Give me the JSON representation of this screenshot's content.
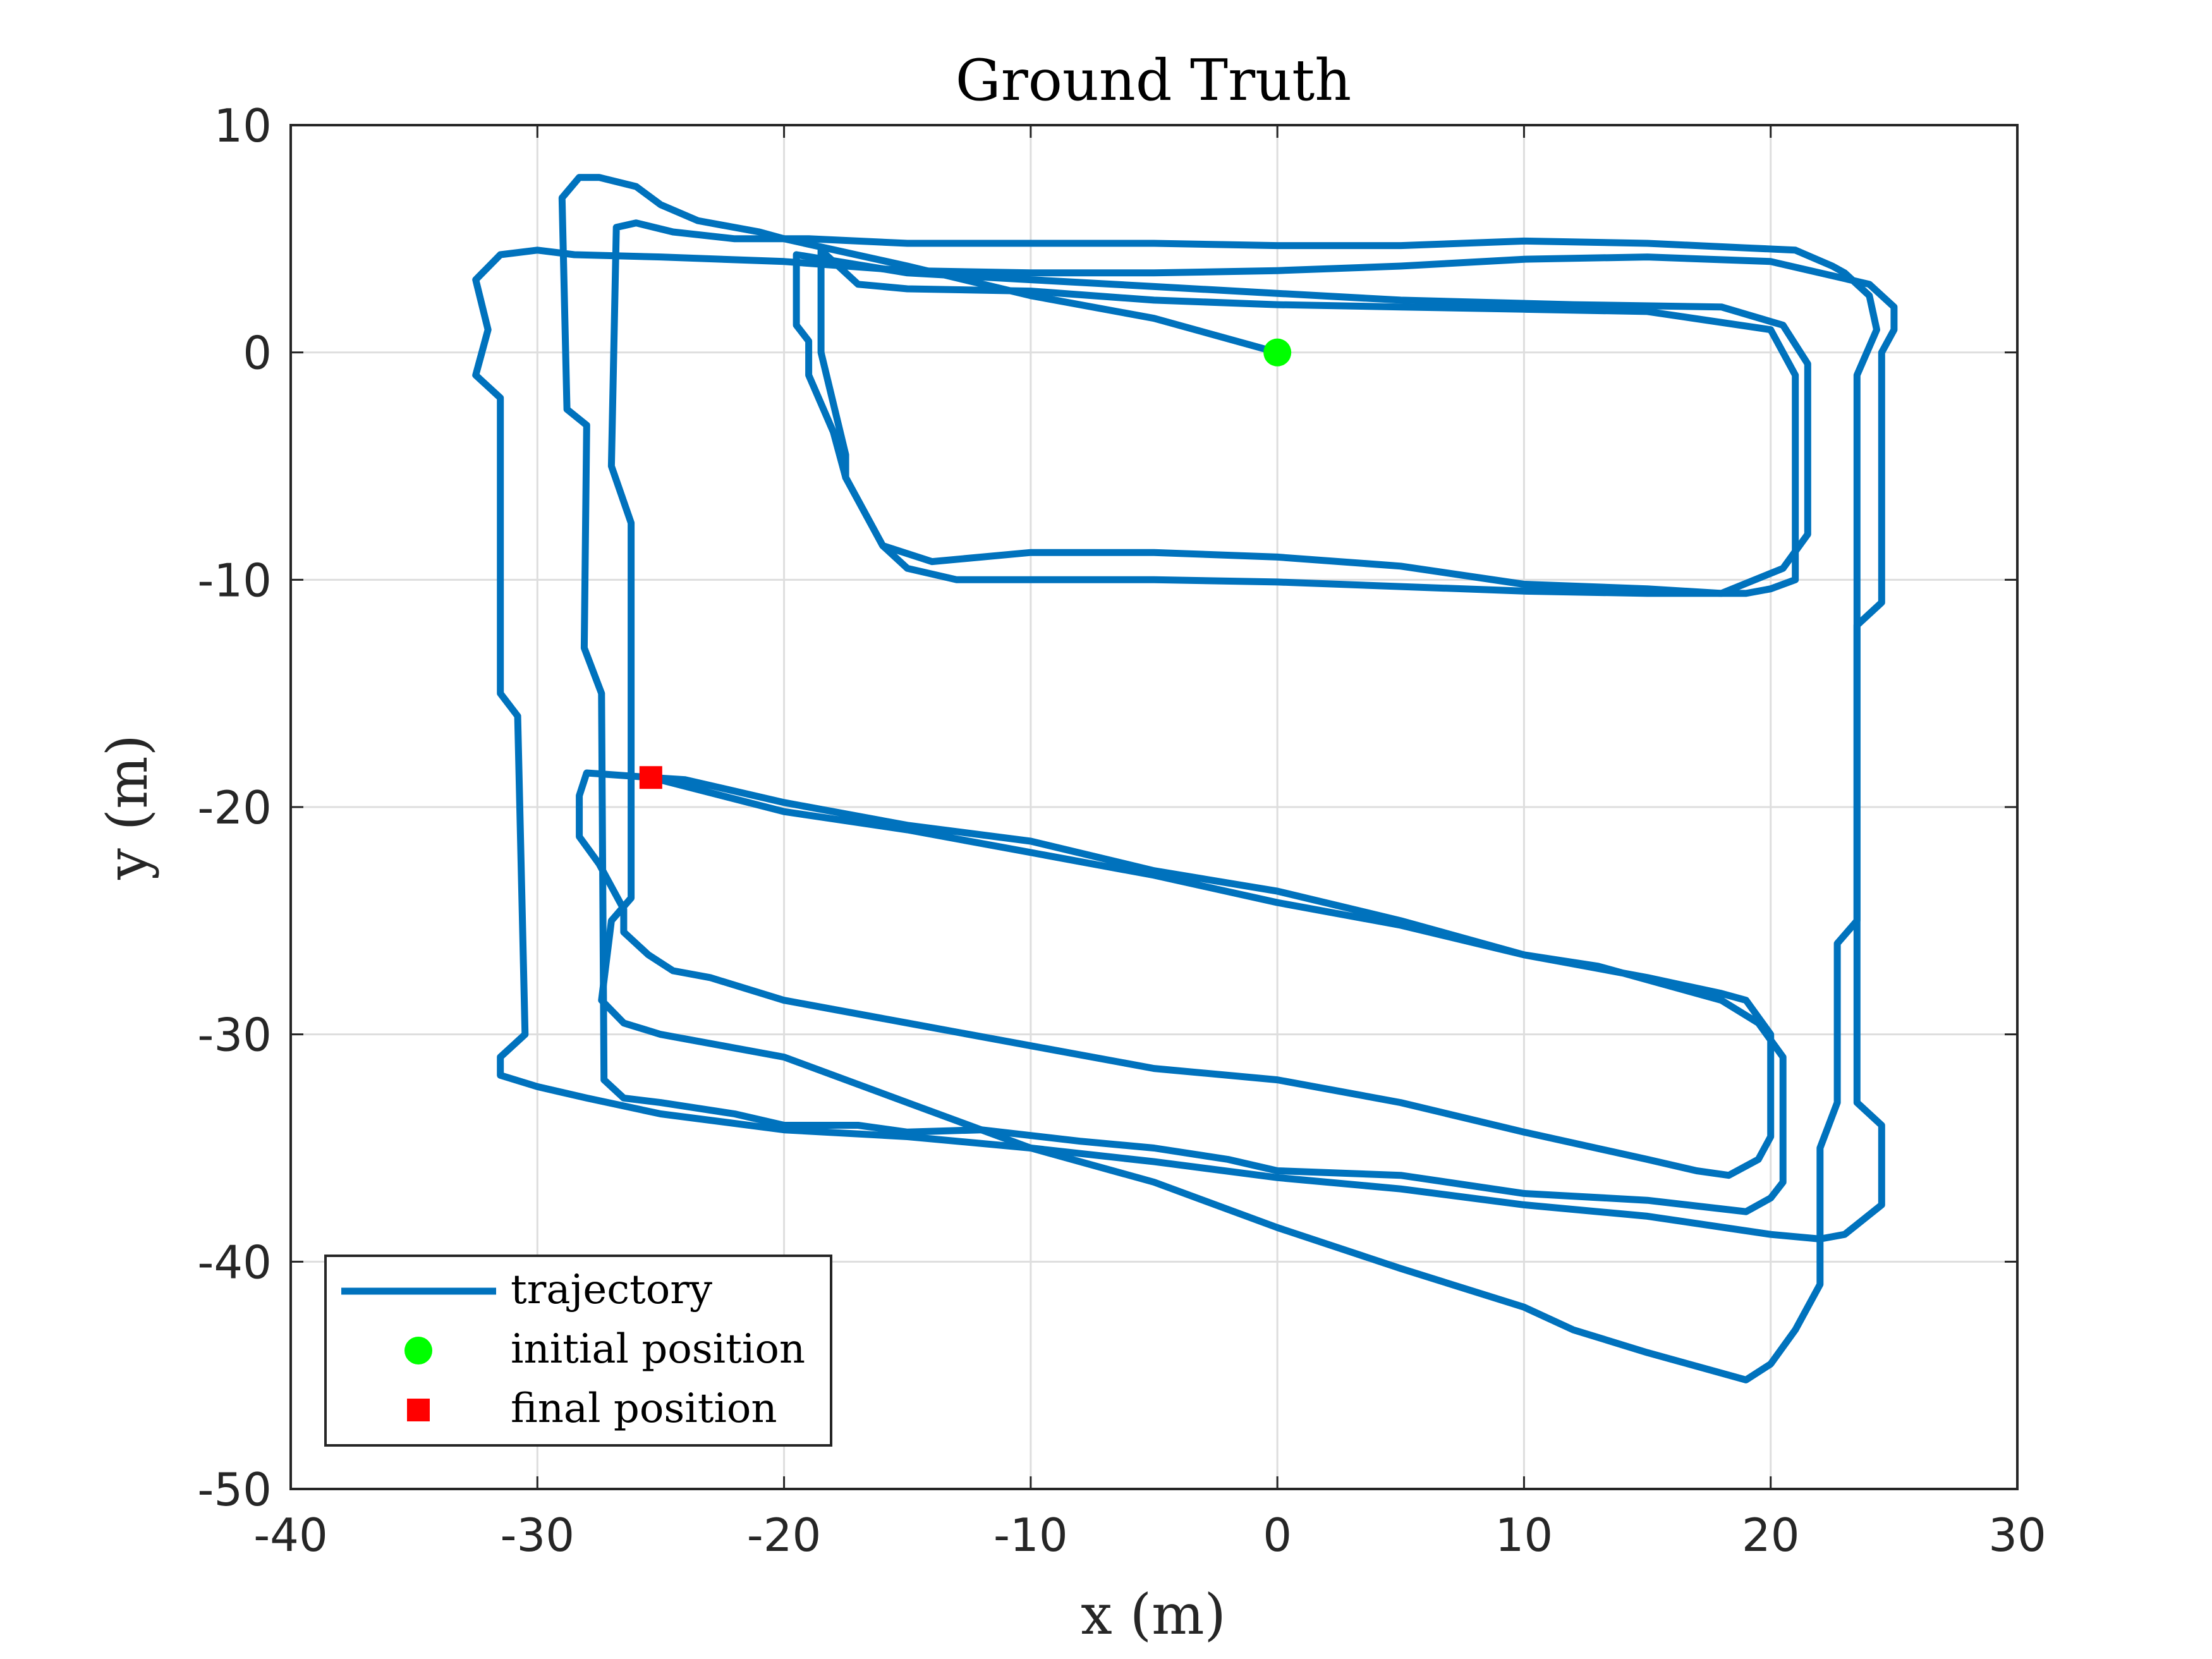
{
  "chart_data": {
    "type": "line",
    "title": "Ground Truth",
    "xlabel": "x (m)",
    "ylabel": "y (m)",
    "xlim": [
      -40,
      30
    ],
    "ylim": [
      -50,
      10
    ],
    "xticks": [
      -40,
      -30,
      -20,
      -10,
      0,
      10,
      20,
      30
    ],
    "yticks": [
      -50,
      -40,
      -30,
      -20,
      -10,
      0,
      10
    ],
    "xtick_labels": [
      "-40",
      "-30",
      "-20",
      "-10",
      "0",
      "10",
      "20",
      "30"
    ],
    "ytick_labels": [
      "-50",
      "-40",
      "-30",
      "-20",
      "-10",
      "0",
      "10"
    ],
    "grid": true,
    "legend_position": "bottom-left",
    "colors": {
      "trajectory": "#0072BD",
      "initial": "#00FF00",
      "final": "#FF0000"
    },
    "series": [
      {
        "name": "trajectory",
        "points": [
          [
            0,
            0
          ],
          [
            -5,
            1.5
          ],
          [
            -10,
            2.5
          ],
          [
            -15,
            3.8
          ],
          [
            -20,
            5
          ],
          [
            -21,
            5.3
          ],
          [
            -22.5,
            5.6
          ],
          [
            -23.5,
            5.8
          ],
          [
            -25,
            6.5
          ],
          [
            -26,
            7.3
          ],
          [
            -27.5,
            7.7
          ],
          [
            -28.3,
            7.7
          ],
          [
            -29,
            6.8
          ],
          [
            -28.8,
            -2.5
          ],
          [
            -28,
            -3.2
          ],
          [
            -28.1,
            -13
          ],
          [
            -27.4,
            -15
          ],
          [
            -27.3,
            -32
          ],
          [
            -26.5,
            -32.8
          ],
          [
            -25,
            -33
          ],
          [
            -22,
            -33.5
          ],
          [
            -20,
            -34
          ],
          [
            -17,
            -34
          ],
          [
            -15,
            -34.3
          ],
          [
            -12,
            -34.2
          ],
          [
            -8,
            -34.7
          ],
          [
            -5,
            -35
          ],
          [
            -2,
            -35.5
          ],
          [
            0,
            -36
          ],
          [
            5,
            -36.2
          ],
          [
            10,
            -37
          ],
          [
            15,
            -37.3
          ],
          [
            19,
            -37.8
          ],
          [
            20,
            -37.2
          ],
          [
            20.5,
            -36.5
          ],
          [
            20.5,
            -31
          ],
          [
            19.5,
            -29.5
          ],
          [
            18,
            -28.5
          ],
          [
            13,
            -27
          ],
          [
            10,
            -26.5
          ],
          [
            5,
            -25
          ],
          [
            0,
            -23.7
          ],
          [
            -5,
            -22.8
          ],
          [
            -10,
            -21.5
          ],
          [
            -15,
            -20.8
          ],
          [
            -20,
            -19.8
          ],
          [
            -24,
            -18.8
          ],
          [
            -25.4,
            -18.7
          ],
          [
            -28,
            -18.5
          ],
          [
            -28.3,
            -19.5
          ],
          [
            -28.3,
            -21.3
          ],
          [
            -27.5,
            -22.5
          ],
          [
            -26.5,
            -24.5
          ],
          [
            -26.5,
            -25.5
          ],
          [
            -25.5,
            -26.5
          ],
          [
            -24.5,
            -27.2
          ],
          [
            -23,
            -27.5
          ],
          [
            -20,
            -28.5
          ],
          [
            -15,
            -29.5
          ],
          [
            -10,
            -30.5
          ],
          [
            -5,
            -31.5
          ],
          [
            0,
            -32
          ],
          [
            5,
            -33
          ],
          [
            10,
            -34.3
          ],
          [
            15,
            -35.5
          ],
          [
            17,
            -36
          ],
          [
            18.3,
            -36.2
          ],
          [
            19.5,
            -35.5
          ],
          [
            20,
            -34.5
          ],
          [
            20,
            -30
          ],
          [
            19,
            -28.5
          ],
          [
            18,
            -28.2
          ],
          [
            15,
            -27.5
          ],
          [
            10,
            -26.5
          ],
          [
            5,
            -25.2
          ],
          [
            0,
            -24.2
          ],
          [
            -5,
            -23
          ],
          [
            -10,
            -22
          ],
          [
            -15,
            -21
          ],
          [
            -20,
            -20.2
          ],
          [
            -25.4,
            -18.7
          ]
        ],
        "extra_loops": [
          [
            [
              -18.5,
              4.5
            ],
            [
              -18.5,
              0
            ],
            [
              -17.5,
              -4.5
            ],
            [
              -17.5,
              -5.5
            ],
            [
              -17,
              -6.5
            ],
            [
              -16,
              -8.5
            ],
            [
              -15,
              -9.5
            ],
            [
              -13,
              -10
            ],
            [
              -10,
              -10
            ],
            [
              -5,
              -10
            ],
            [
              0,
              -10.1
            ],
            [
              5,
              -10.3
            ],
            [
              10,
              -10.5
            ],
            [
              15,
              -10.6
            ],
            [
              19,
              -10.6
            ],
            [
              20,
              -10.4
            ],
            [
              21,
              -10
            ],
            [
              21,
              -1
            ],
            [
              20,
              1
            ],
            [
              15,
              1.8
            ],
            [
              10,
              1.9
            ],
            [
              5,
              2
            ],
            [
              0,
              2.1
            ],
            [
              -5,
              2.3
            ],
            [
              -10,
              2.7
            ],
            [
              -15,
              2.8
            ],
            [
              -17,
              3
            ],
            [
              -18.5,
              4.5
            ]
          ],
          [
            [
              -19.5,
              4.3
            ],
            [
              -19.5,
              1.2
            ],
            [
              -19,
              0.5
            ],
            [
              -19,
              -1
            ],
            [
              -18,
              -3.5
            ],
            [
              -17.5,
              -5.5
            ],
            [
              -16,
              -8.5
            ],
            [
              -14,
              -9.2
            ],
            [
              -10,
              -8.8
            ],
            [
              -5,
              -8.8
            ],
            [
              0,
              -9
            ],
            [
              5,
              -9.4
            ],
            [
              10,
              -10.2
            ],
            [
              15,
              -10.4
            ],
            [
              18,
              -10.6
            ],
            [
              20.5,
              -9.5
            ],
            [
              21.5,
              -8
            ],
            [
              21.5,
              -0.5
            ],
            [
              20.5,
              1.2
            ],
            [
              18,
              2
            ],
            [
              12,
              2.1
            ],
            [
              5,
              2.3
            ],
            [
              0,
              2.6
            ],
            [
              -5,
              2.9
            ],
            [
              -10,
              3.2
            ],
            [
              -15,
              3.5
            ],
            [
              -19.5,
              4.3
            ]
          ],
          [
            [
              -26.8,
              5.5
            ],
            [
              -26,
              5.7
            ],
            [
              -24.5,
              5.3
            ],
            [
              -22,
              5
            ],
            [
              -19,
              5
            ],
            [
              -15,
              4.8
            ],
            [
              -10,
              4.8
            ],
            [
              -5,
              4.8
            ],
            [
              0,
              4.7
            ],
            [
              5,
              4.7
            ],
            [
              10,
              4.9
            ],
            [
              15,
              4.8
            ],
            [
              19,
              4.6
            ],
            [
              21,
              4.5
            ],
            [
              22.5,
              3.8
            ],
            [
              23,
              3.5
            ],
            [
              24,
              2.5
            ],
            [
              24.3,
              1
            ],
            [
              23.5,
              -1
            ],
            [
              23.5,
              -25
            ],
            [
              22.7,
              -26
            ],
            [
              22.7,
              -33
            ],
            [
              22,
              -35
            ],
            [
              22,
              -41
            ],
            [
              21,
              -43
            ],
            [
              20,
              -44.5
            ],
            [
              19,
              -45.2
            ],
            [
              15,
              -44
            ],
            [
              12,
              -43
            ],
            [
              10,
              -42
            ],
            [
              5,
              -40.3
            ],
            [
              0,
              -38.5
            ],
            [
              -5,
              -36.5
            ],
            [
              -10,
              -35
            ],
            [
              -15,
              -33
            ],
            [
              -20,
              -31
            ],
            [
              -25,
              -30
            ],
            [
              -26.5,
              -29.5
            ],
            [
              -27.4,
              -28.5
            ],
            [
              -27,
              -25
            ],
            [
              -26.2,
              -24
            ],
            [
              -26.2,
              -7.5
            ],
            [
              -27,
              -5
            ],
            [
              -26.8,
              5.5
            ]
          ],
          [
            [
              -31.5,
              4.3
            ],
            [
              -30,
              4.5
            ],
            [
              -28.5,
              4.3
            ],
            [
              -25,
              4.2
            ],
            [
              -20,
              4
            ],
            [
              -15,
              3.6
            ],
            [
              -10,
              3.5
            ],
            [
              -5,
              3.5
            ],
            [
              0,
              3.6
            ],
            [
              5,
              3.8
            ],
            [
              10,
              4.1
            ],
            [
              15,
              4.2
            ],
            [
              20,
              4
            ],
            [
              22,
              3.5
            ],
            [
              24,
              3
            ],
            [
              25,
              2
            ],
            [
              25,
              1
            ],
            [
              24.5,
              0
            ],
            [
              24.5,
              -11
            ],
            [
              23.5,
              -12
            ],
            [
              23.5,
              -33
            ],
            [
              24.5,
              -34
            ],
            [
              24.5,
              -37.5
            ],
            [
              23,
              -38.8
            ],
            [
              22,
              -39
            ],
            [
              20,
              -38.8
            ],
            [
              15,
              -38
            ],
            [
              10,
              -37.5
            ],
            [
              5,
              -36.8
            ],
            [
              0,
              -36.3
            ],
            [
              -5,
              -35.6
            ],
            [
              -10,
              -35
            ],
            [
              -15,
              -34.5
            ],
            [
              -20,
              -34.2
            ],
            [
              -25,
              -33.5
            ],
            [
              -28,
              -32.8
            ],
            [
              -30,
              -32.3
            ],
            [
              -31.5,
              -31.8
            ],
            [
              -31.5,
              -31
            ],
            [
              -30.5,
              -30
            ],
            [
              -30.8,
              -16
            ],
            [
              -31.5,
              -15
            ],
            [
              -31.5,
              -2
            ],
            [
              -32.5,
              -1
            ],
            [
              -32,
              1
            ],
            [
              -32.5,
              3.2
            ],
            [
              -31.5,
              4.3
            ]
          ]
        ]
      }
    ],
    "initial_position": [
      0,
      0
    ],
    "final_position": [
      -25.4,
      -18.7
    ],
    "legend": [
      {
        "key": "trajectory",
        "label": "trajectory"
      },
      {
        "key": "initial",
        "label": "initial position"
      },
      {
        "key": "final",
        "label": "final position"
      }
    ]
  }
}
